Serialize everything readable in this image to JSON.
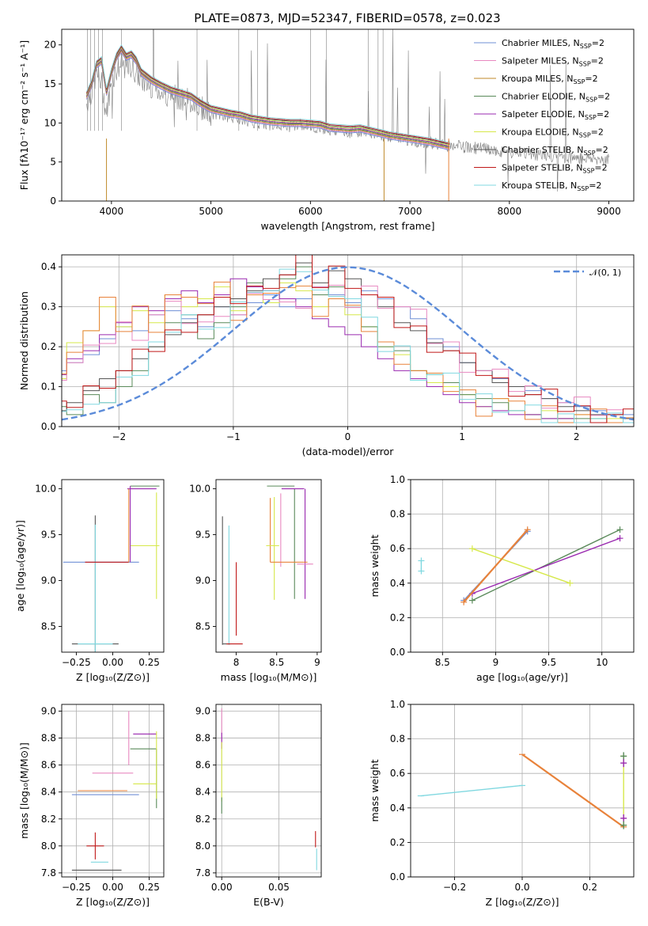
{
  "figure": {
    "title": "PLATE=0873, MJD=52347, FIBERID=0578, z=0.023"
  },
  "colors": {
    "Chabrier MILES": "#6f8fd6",
    "Salpeter MILES": "#e888c0",
    "Kroupa MILES": "#c08a2a",
    "Chabrier ELODIE": "#5a8a5a",
    "Salpeter ELODIE": "#9a2ab0",
    "Kroupa ELODIE": "#d6e84a",
    "Chabrier STELIB": "#555555",
    "Salpeter STELIB": "#c01818",
    "Kroupa STELIB": "#80d8e0",
    "data": "#808080",
    "normal": "#5b8bd9",
    "orange": "#e8823a"
  },
  "chart_data": [
    {
      "id": "spectrum",
      "type": "line",
      "title": "PLATE=0873, MJD=52347, FIBERID=0578, z=0.023",
      "xlabel": "wavelength [Angstrom, rest frame]",
      "ylabel": "Flux [fλ10⁻¹⁷ erg cm⁻² s⁻¹ A⁻¹]",
      "xlim": [
        3500,
        9250
      ],
      "ylim": [
        0,
        22
      ],
      "xticks": [
        4000,
        5000,
        6000,
        7000,
        8000,
        9000
      ],
      "yticks": [
        0,
        5,
        10,
        15,
        20
      ],
      "legend": [
        "Chabrier MILES, N_SSP=2",
        "Salpeter MILES, N_SSP=2",
        "Kroupa MILES, N_SSP=2",
        "Chabrier ELODIE, N_SSP=2",
        "Salpeter ELODIE, N_SSP=2",
        "Kroupa ELODIE, N_SSP=2",
        "Chabrier STELIB, N_SSP=2",
        "Salpeter STELIB, N_SSP=2",
        "Kroupa STELIB, N_SSP=2"
      ],
      "legend_position": "top-right",
      "data_series": {
        "x": [
          3750,
          3800,
          3850,
          3900,
          3950,
          4000,
          4050,
          4100,
          4150,
          4200,
          4250,
          4300,
          4350,
          4400,
          4500,
          4600,
          4700,
          4800,
          4900,
          5000,
          5100,
          5200,
          5300,
          5400,
          5500,
          5600,
          5700,
          5800,
          5900,
          6000,
          6100,
          6200,
          6300,
          6400,
          6500,
          6600,
          6700,
          6800,
          6900,
          7000,
          7100,
          7200,
          7300,
          7400,
          7500,
          7600,
          7700,
          7800,
          7900,
          8000,
          8100,
          8200,
          8300,
          8400,
          8500,
          8600,
          8700,
          8800,
          8900,
          9000
        ],
        "y": [
          12.5,
          14.0,
          16.5,
          15.0,
          11.0,
          15.5,
          16.8,
          17.5,
          17.0,
          17.2,
          16.5,
          15.5,
          15.0,
          14.8,
          14.0,
          13.5,
          13.2,
          12.8,
          12.0,
          11.2,
          11.0,
          10.8,
          10.6,
          10.2,
          10.0,
          9.8,
          9.8,
          9.6,
          9.8,
          9.6,
          9.5,
          9.0,
          9.0,
          8.8,
          9.0,
          8.8,
          8.5,
          8.2,
          8.0,
          7.8,
          7.6,
          7.5,
          7.2,
          7.0,
          7.0,
          6.8,
          6.8,
          6.5,
          6.3,
          6.2,
          6.0,
          6.0,
          5.9,
          5.8,
          5.7,
          5.6,
          5.5,
          5.5,
          5.4,
          5.3
        ]
      },
      "model_series": {
        "x": [
          3750,
          3800,
          3850,
          3900,
          3950,
          4000,
          4050,
          4100,
          4150,
          4200,
          4250,
          4300,
          4350,
          4400,
          4500,
          4600,
          4700,
          4800,
          4900,
          5000,
          5100,
          5200,
          5300,
          5400,
          5500,
          5600,
          5700,
          5800,
          5900,
          6000,
          6100,
          6200,
          6300,
          6400,
          6500,
          6600,
          6700,
          6800,
          6900,
          7000,
          7100,
          7200,
          7300,
          7400
        ],
        "y": [
          13.5,
          15.0,
          17.5,
          18.0,
          14.0,
          16.5,
          18.5,
          19.5,
          18.5,
          18.8,
          18.0,
          16.5,
          16.0,
          15.5,
          14.8,
          14.2,
          13.8,
          13.4,
          12.5,
          11.8,
          11.5,
          11.2,
          11.0,
          10.6,
          10.4,
          10.2,
          10.1,
          10.0,
          10.0,
          9.9,
          9.8,
          9.4,
          9.3,
          9.2,
          9.3,
          9.0,
          8.7,
          8.4,
          8.2,
          8.0,
          7.8,
          7.6,
          7.3,
          7.0
        ]
      }
    },
    {
      "id": "residuals",
      "type": "line",
      "xlabel": "(data-model)/error",
      "ylabel": "Normed distribution",
      "xlim": [
        -2.5,
        2.5
      ],
      "ylim": [
        0,
        0.43
      ],
      "xticks": [
        -2,
        -1,
        0,
        1,
        2
      ],
      "yticks": [
        0.0,
        0.1,
        0.2,
        0.3,
        0.4
      ],
      "legend": [
        "𝒩(0, 1)"
      ],
      "legend_position": "top-right",
      "series": [
        {
          "model": "Chabrier MILES",
          "values": [
            0.14,
            0.16,
            0.18,
            0.22,
            0.25,
            0.24,
            0.28,
            0.29,
            0.27,
            0.25,
            0.3,
            0.28,
            0.31,
            0.33,
            0.3,
            0.32,
            0.35,
            0.33,
            0.31,
            0.34,
            0.32,
            0.3,
            0.27,
            0.22,
            0.2,
            0.16,
            0.14,
            0.12,
            0.1,
            0.09,
            0.07,
            0.06,
            0.05,
            0.04,
            0.03,
            0.03
          ]
        },
        {
          "model": "Kroupa ELODIE",
          "values": [
            0.12,
            0.21,
            0.24,
            0.3,
            0.25,
            0.29,
            0.26,
            0.33,
            0.3,
            0.32,
            0.35,
            0.29,
            0.33,
            0.31,
            0.36,
            0.34,
            0.3,
            0.32,
            0.28,
            0.25,
            0.2,
            0.18,
            0.14,
            0.11,
            0.1,
            0.08,
            0.05,
            0.07,
            0.04,
            0.03,
            0.04,
            0.02,
            0.03,
            0.02,
            0.02,
            0.01
          ]
        },
        {
          "model": "Chabrier ELODIE",
          "values": [
            0.05,
            0.03,
            0.08,
            0.06,
            0.1,
            0.14,
            0.2,
            0.26,
            0.28,
            0.22,
            0.26,
            0.3,
            0.36,
            0.34,
            0.37,
            0.4,
            0.33,
            0.35,
            0.32,
            0.25,
            0.2,
            0.19,
            0.14,
            0.13,
            0.11,
            0.08,
            0.07,
            0.06,
            0.04,
            0.03,
            0.02,
            0.02,
            0.02,
            0.02,
            0.01,
            0.01
          ]
        },
        {
          "model": "Chabrier STELIB",
          "values": [
            0.04,
            0.06,
            0.09,
            0.12,
            0.14,
            0.17,
            0.2,
            0.23,
            0.26,
            0.28,
            0.3,
            0.32,
            0.34,
            0.37,
            0.38,
            0.41,
            0.36,
            0.39,
            0.37,
            0.33,
            0.3,
            0.26,
            0.24,
            0.21,
            0.19,
            0.16,
            0.14,
            0.11,
            0.1,
            0.08,
            0.07,
            0.05,
            0.04,
            0.03,
            0.03,
            0.02
          ]
        },
        {
          "model": "Salpeter ELODIE",
          "values": [
            0.13,
            0.17,
            0.19,
            0.23,
            0.26,
            0.3,
            0.29,
            0.32,
            0.34,
            0.31,
            0.33,
            0.37,
            0.35,
            0.34,
            0.32,
            0.3,
            0.27,
            0.25,
            0.23,
            0.2,
            0.17,
            0.14,
            0.12,
            0.1,
            0.08,
            0.06,
            0.05,
            0.04,
            0.03,
            0.03,
            0.02,
            0.02,
            0.01,
            0.01,
            0.01,
            0.01
          ]
        }
      ],
      "normal_curve": {
        "mean": 0,
        "sigma": 1
      }
    },
    {
      "id": "age-vs-Z",
      "type": "scatter",
      "xlabel": "Z [log₁₀(Z/Z⊙)]",
      "ylabel": "age  [log₁₀(age/yr)]",
      "xlim": [
        -0.35,
        0.35
      ],
      "ylim": [
        8.22,
        10.1
      ],
      "xticks": [
        -0.25,
        0.0,
        0.25
      ],
      "xtick_labels": [
        "−0.25",
        "0.00",
        "0.25"
      ],
      "yticks": [
        8.5,
        9.0,
        9.5,
        10.0
      ]
    },
    {
      "id": "age-vs-mass",
      "type": "scatter",
      "xlabel": "mass [log₁₀(M/M⊙)]",
      "xlim": [
        7.75,
        9.05
      ],
      "ylim": [
        8.22,
        10.1
      ],
      "xticks": [
        8.0,
        8.5,
        9.0
      ],
      "yticks": [
        8.5,
        9.0,
        9.5,
        10.0
      ]
    },
    {
      "id": "massweight-vs-age",
      "type": "scatter",
      "xlabel": "age  [log₁₀(age/yr)]",
      "ylabel": "mass weight",
      "xlim": [
        8.2,
        10.3
      ],
      "ylim": [
        0,
        1.0
      ],
      "xticks": [
        8.5,
        9.0,
        9.5,
        10.0
      ],
      "yticks": [
        0.0,
        0.2,
        0.4,
        0.6,
        0.8,
        1.0
      ],
      "series": [
        {
          "model": "Chabrier ELODIE",
          "x": [
            8.78,
            10.17
          ],
          "y": [
            0.3,
            0.71
          ]
        },
        {
          "model": "Salpeter ELODIE",
          "x": [
            8.78,
            10.17
          ],
          "y": [
            0.34,
            0.66
          ]
        },
        {
          "model": "Kroupa ELODIE",
          "x": [
            8.78,
            9.7
          ],
          "y": [
            0.6,
            0.4
          ]
        },
        {
          "model": "Chabrier MILES",
          "x": [
            8.7,
            9.3
          ],
          "y": [
            0.3,
            0.7
          ]
        },
        {
          "model": "orange",
          "x": [
            8.7,
            9.3
          ],
          "y": [
            0.29,
            0.71
          ]
        },
        {
          "model": "Kroupa STELIB",
          "x": [
            8.3,
            8.3
          ],
          "y": [
            0.47,
            0.53
          ]
        }
      ]
    },
    {
      "id": "mass-vs-Z",
      "type": "scatter",
      "xlabel": "Z [log₁₀(Z/Z⊙)]",
      "ylabel": "mass [log₁₀(M/M⊙)]",
      "xlim": [
        -0.35,
        0.35
      ],
      "ylim": [
        7.77,
        9.05
      ],
      "xticks": [
        -0.25,
        0.0,
        0.25
      ],
      "xtick_labels": [
        "−0.25",
        "0.00",
        "0.25"
      ],
      "yticks": [
        7.8,
        8.0,
        8.2,
        8.4,
        8.6,
        8.8,
        9.0
      ]
    },
    {
      "id": "mass-vs-EBV",
      "type": "scatter",
      "xlabel": "E(B-V)",
      "xlim": [
        -0.005,
        0.087
      ],
      "ylim": [
        7.77,
        9.05
      ],
      "xticks": [
        0.0,
        0.05
      ],
      "xtick_labels": [
        "0.00",
        "0.05"
      ],
      "yticks": [
        7.8,
        8.0,
        8.2,
        8.4,
        8.6,
        8.8,
        9.0
      ]
    },
    {
      "id": "massweight-vs-Z",
      "type": "scatter",
      "xlabel": "Z [log₁₀(Z/Z⊙)]",
      "ylabel": "mass weight",
      "xlim": [
        -0.33,
        0.33
      ],
      "ylim": [
        0,
        1.0
      ],
      "xticks": [
        -0.2,
        0.0,
        0.2
      ],
      "xtick_labels": [
        "−0.2",
        "0.0",
        "0.2"
      ],
      "yticks": [
        0.0,
        0.2,
        0.4,
        0.6,
        0.8,
        1.0
      ],
      "series": [
        {
          "model": "Kroupa STELIB",
          "x": [
            -0.3,
            0.0
          ],
          "y": [
            0.47,
            0.53
          ]
        },
        {
          "model": "orange",
          "x": [
            0.0,
            0.3
          ],
          "y": [
            0.71,
            0.29
          ]
        },
        {
          "model": "Kroupa ELODIE",
          "x": [
            0.3,
            0.3
          ],
          "y": [
            0.3,
            0.7
          ]
        }
      ]
    }
  ]
}
